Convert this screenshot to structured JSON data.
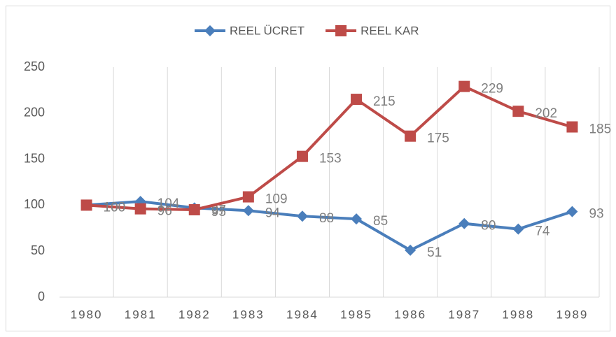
{
  "chart_data": {
    "type": "line",
    "categories": [
      "1980",
      "1981",
      "1982",
      "1983",
      "1984",
      "1985",
      "1986",
      "1987",
      "1988",
      "1989"
    ],
    "series": [
      {
        "name": "REEL ÜCRET",
        "color": "#4a7ebb",
        "marker": "diamond",
        "values": [
          100,
          104,
          97,
          94,
          88,
          85,
          51,
          80,
          74,
          93
        ]
      },
      {
        "name": "REEL KAR",
        "color": "#be4b48",
        "marker": "square",
        "values": [
          100,
          96,
          95,
          109,
          153,
          215,
          175,
          229,
          202,
          185
        ]
      }
    ],
    "ylim": [
      0,
      250
    ],
    "yticks": [
      0,
      50,
      100,
      150,
      200,
      250
    ],
    "grid": "x",
    "legend": "top",
    "data_labels": true
  }
}
